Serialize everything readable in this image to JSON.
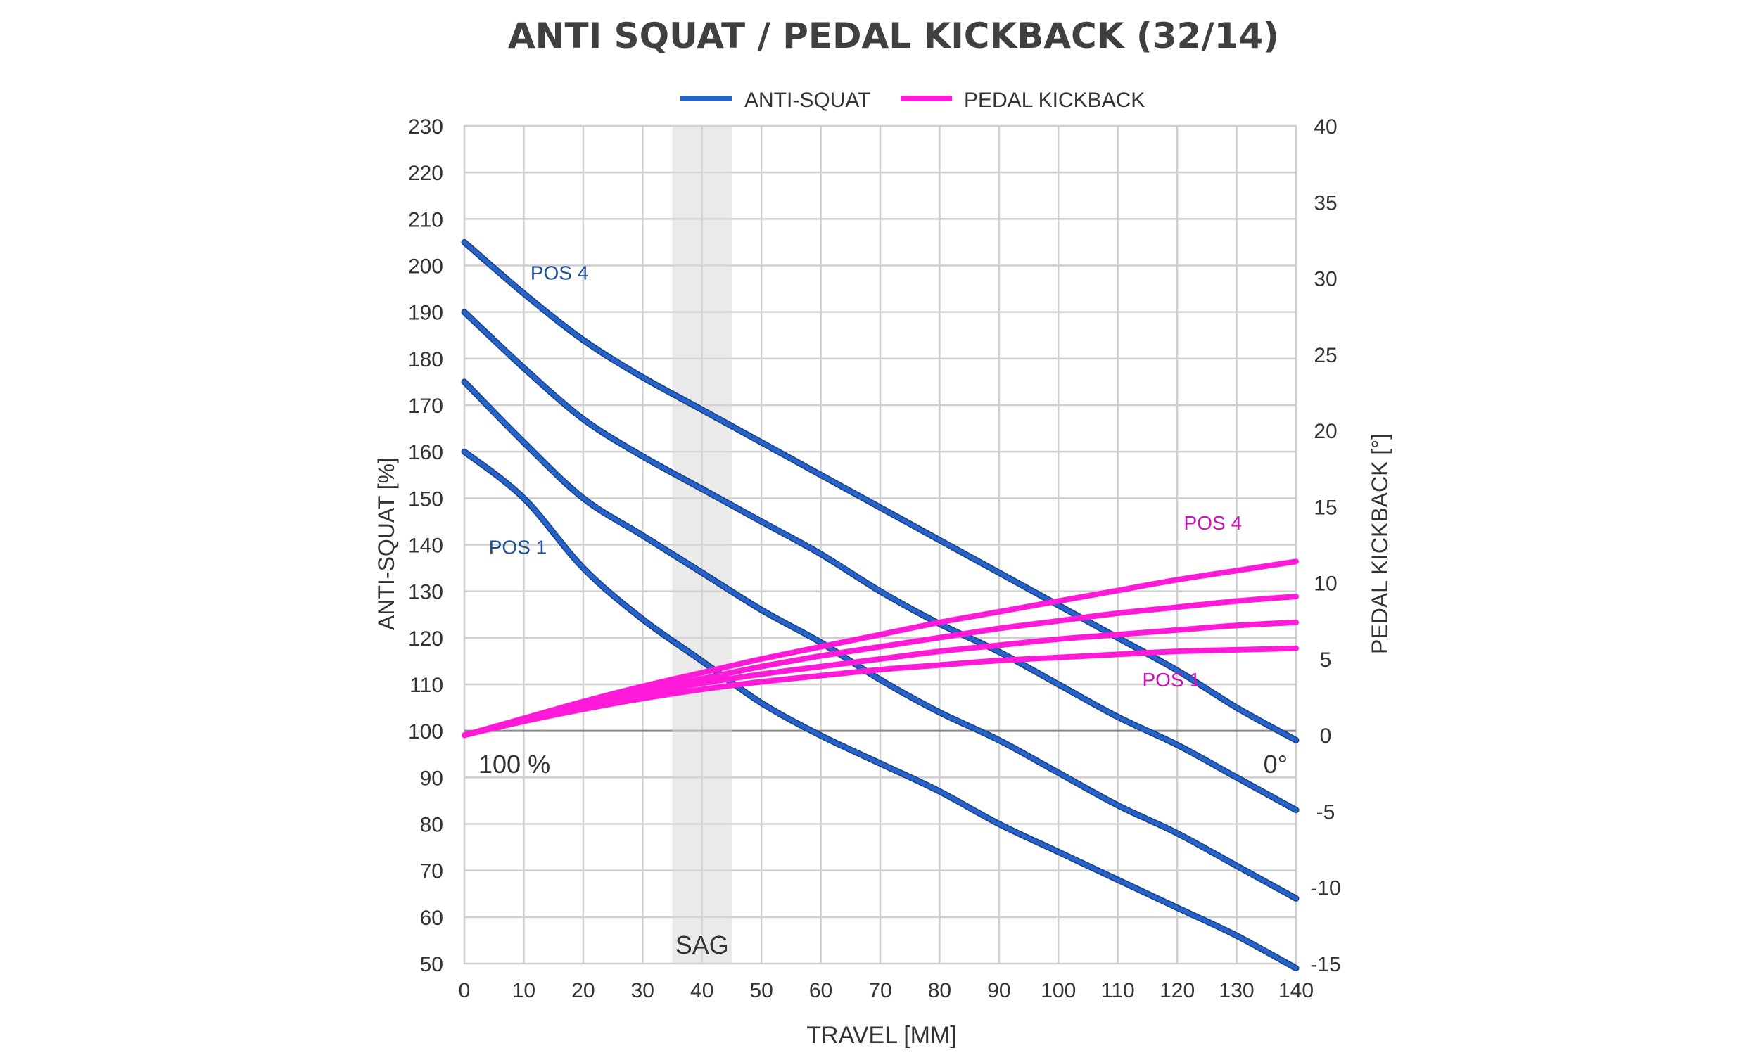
{
  "chart_data": {
    "type": "line",
    "title": "ANTI SQUAT / PEDAL KICKBACK  (32/14)",
    "xlabel": "TRAVEL [MM]",
    "ylabel": "ANTI-SQUAT [%]",
    "y2label": "PEDAL KICKBACK [°]",
    "xlim": [
      0,
      140
    ],
    "ylim": [
      50,
      230
    ],
    "y2lim": [
      -15,
      40
    ],
    "x_ticks": [
      0,
      10,
      20,
      30,
      40,
      50,
      60,
      70,
      80,
      90,
      100,
      110,
      120,
      130,
      140
    ],
    "y_ticks": [
      50,
      60,
      70,
      80,
      90,
      100,
      110,
      120,
      130,
      140,
      150,
      160,
      170,
      180,
      190,
      200,
      210,
      220,
      230
    ],
    "y2_ticks": [
      -15,
      -10,
      -5,
      0,
      5,
      10,
      15,
      20,
      25,
      30,
      35,
      40
    ],
    "grid": true,
    "legend": {
      "placement": "top-center",
      "entries": [
        {
          "label": "ANTI-SQUAT",
          "color": "#2563c9"
        },
        {
          "label": "PEDAL KICKBACK",
          "color": "#ff1ad9"
        }
      ]
    },
    "sag_band": {
      "range": [
        35,
        45
      ],
      "label": "SAG"
    },
    "reference_labels": {
      "anti_squat_ref": "100 %",
      "kickback_ref": "0°"
    },
    "x": [
      0,
      10,
      20,
      30,
      40,
      50,
      60,
      70,
      80,
      90,
      100,
      110,
      120,
      130,
      140
    ],
    "series": [
      {
        "name": "ANTI-SQUAT POS 1",
        "axis": "left",
        "color": "#2563c9",
        "values": [
          160,
          150,
          135,
          124,
          115,
          106,
          99,
          93,
          87,
          80,
          74,
          68,
          62,
          56,
          49
        ]
      },
      {
        "name": "ANTI-SQUAT POS 2",
        "axis": "left",
        "color": "#2563c9",
        "values": [
          175,
          162,
          150,
          142,
          134,
          126,
          119,
          111,
          104,
          98,
          91,
          84,
          78,
          71,
          64
        ]
      },
      {
        "name": "ANTI-SQUAT POS 3",
        "axis": "left",
        "color": "#2563c9",
        "values": [
          190,
          178,
          167,
          159,
          152,
          145,
          138,
          130,
          123,
          117,
          110,
          103,
          97,
          90,
          83
        ]
      },
      {
        "name": "ANTI-SQUAT POS 4",
        "axis": "left",
        "color": "#2563c9",
        "values": [
          205,
          194,
          184,
          176,
          169,
          162,
          155,
          148,
          141,
          134,
          127,
          120,
          113,
          105,
          98
        ]
      },
      {
        "name": "PEDAL KICKBACK POS 1",
        "axis": "right",
        "color": "#ff1ad9",
        "values": [
          0,
          0.9,
          1.7,
          2.4,
          3.0,
          3.5,
          3.9,
          4.3,
          4.6,
          4.9,
          5.1,
          5.3,
          5.5,
          5.6,
          5.7
        ]
      },
      {
        "name": "PEDAL KICKBACK POS 2",
        "axis": "right",
        "color": "#ff1ad9",
        "values": [
          0,
          1.0,
          1.9,
          2.7,
          3.4,
          4.0,
          4.5,
          5.0,
          5.5,
          5.9,
          6.3,
          6.6,
          6.9,
          7.2,
          7.4
        ]
      },
      {
        "name": "PEDAL KICKBACK POS 3",
        "axis": "right",
        "color": "#ff1ad9",
        "values": [
          0,
          1.0,
          2.0,
          2.9,
          3.7,
          4.5,
          5.2,
          5.8,
          6.4,
          7.0,
          7.5,
          8.0,
          8.4,
          8.8,
          9.1
        ]
      },
      {
        "name": "PEDAL KICKBACK POS 4",
        "axis": "right",
        "color": "#ff1ad9",
        "values": [
          0,
          1.1,
          2.2,
          3.2,
          4.1,
          5.0,
          5.8,
          6.6,
          7.4,
          8.1,
          8.8,
          9.5,
          10.2,
          10.8,
          11.4
        ]
      }
    ],
    "annotations": [
      {
        "text": "POS 4",
        "series": "ANTI-SQUAT POS 4",
        "x": 16,
        "y": 197,
        "axis": "left",
        "color": "#1f4e9a"
      },
      {
        "text": "POS 1",
        "series": "ANTI-SQUAT POS 1",
        "x": 9,
        "y": 138,
        "axis": "left",
        "color": "#1f4e9a"
      },
      {
        "text": "POS 4",
        "series": "PEDAL KICKBACK POS 4",
        "x": 126,
        "y": 13.5,
        "axis": "right",
        "color": "#cc11b8"
      },
      {
        "text": "POS 1",
        "series": "PEDAL KICKBACK POS 1",
        "x": 119,
        "y": 3.2,
        "axis": "right",
        "color": "#cc11b8"
      }
    ]
  }
}
